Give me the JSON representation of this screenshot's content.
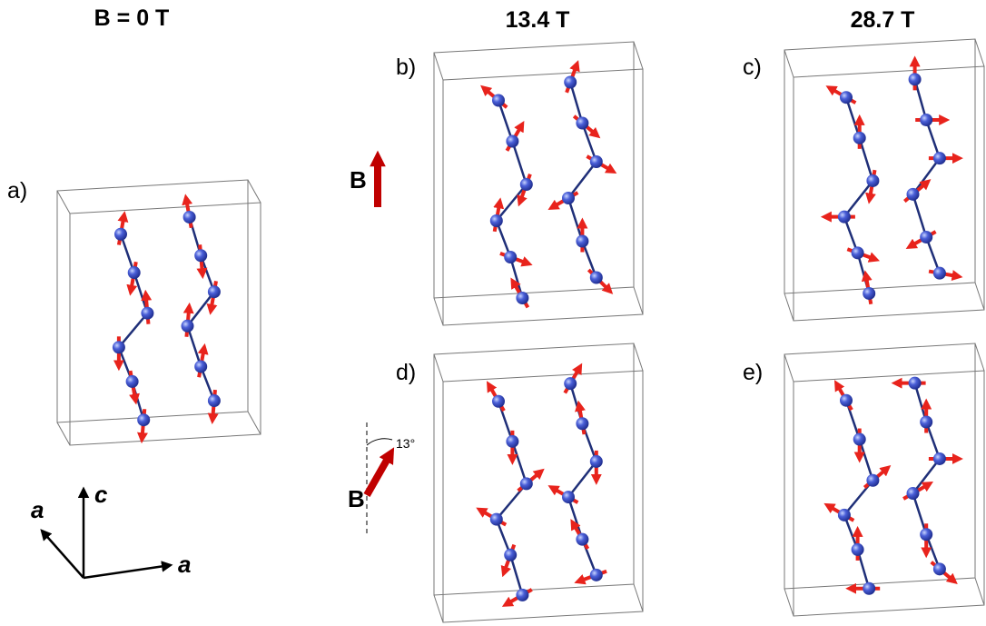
{
  "headers": [
    "B = 0 T",
    "13.4 T",
    "28.7 T"
  ],
  "panels": [
    {
      "label": "a)"
    },
    {
      "label": "b)"
    },
    {
      "label": "c)"
    },
    {
      "label": "d)"
    },
    {
      "label": "e)"
    }
  ],
  "field_indicators": [
    {
      "label": "B"
    },
    {
      "label": "B",
      "angle": "13°"
    }
  ],
  "axes": {
    "c": "c",
    "a_left": "a",
    "a_right": "a"
  }
}
